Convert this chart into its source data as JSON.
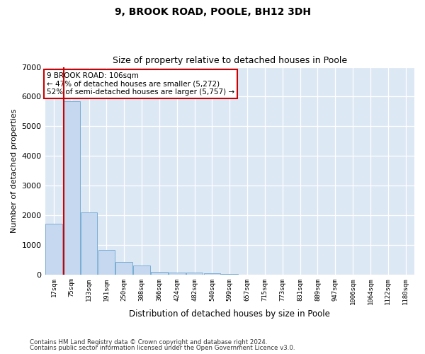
{
  "title1": "9, BROOK ROAD, POOLE, BH12 3DH",
  "title2": "Size of property relative to detached houses in Poole",
  "xlabel": "Distribution of detached houses by size in Poole",
  "ylabel": "Number of detached properties",
  "annotation_line1": "9 BROOK ROAD: 106sqm",
  "annotation_line2": "← 47% of detached houses are smaller (5,272)",
  "annotation_line3": "52% of semi-detached houses are larger (5,757) →",
  "footnote1": "Contains HM Land Registry data © Crown copyright and database right 2024.",
  "footnote2": "Contains public sector information licensed under the Open Government Licence v3.0.",
  "bar_color": "#c5d8f0",
  "bar_edge_color": "#7aadd4",
  "red_line_color": "#cc0000",
  "annotation_box_color": "#cc0000",
  "plot_bg_color": "#dde8f5",
  "categories": [
    "17sqm",
    "75sqm",
    "133sqm",
    "191sqm",
    "250sqm",
    "308sqm",
    "366sqm",
    "424sqm",
    "482sqm",
    "540sqm",
    "599sqm",
    "657sqm",
    "715sqm",
    "773sqm",
    "831sqm",
    "889sqm",
    "947sqm",
    "1006sqm",
    "1064sqm",
    "1122sqm",
    "1180sqm"
  ],
  "values": [
    1700,
    5850,
    2100,
    820,
    430,
    310,
    80,
    65,
    50,
    35,
    10,
    0,
    0,
    0,
    0,
    0,
    0,
    0,
    0,
    0,
    0
  ],
  "red_line_x": 0.58,
  "ylim": [
    0,
    7000
  ],
  "yticks": [
    0,
    1000,
    2000,
    3000,
    4000,
    5000,
    6000,
    7000
  ],
  "figwidth": 6.0,
  "figheight": 5.0,
  "dpi": 100
}
